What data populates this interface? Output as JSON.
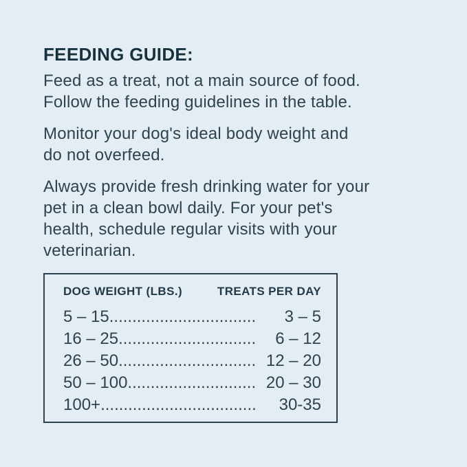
{
  "page": {
    "background_color": "#e3edf3",
    "body_text_color": "#2e434f",
    "heading_text_color": "#17313f",
    "table_border_color": "#2c414d"
  },
  "guide": {
    "heading": "FEEDING GUIDE:",
    "paragraphs": [
      {
        "lines": [
          "Feed as a treat, not a main source of food.",
          "Follow the feeding guidelines in the table."
        ]
      },
      {
        "lines": [
          "Monitor your dog's ideal body weight and",
          "do not overfeed."
        ]
      },
      {
        "lines": [
          "Always provide fresh drinking water for your",
          "pet in a clean bowl daily. For your pet's",
          "health, schedule regular visits with your",
          "veterinarian."
        ]
      }
    ]
  },
  "table": {
    "headers": {
      "weight": "DOG WEIGHT (LBS.)",
      "treats": "TREATS PER DAY"
    },
    "rows": [
      {
        "weight": "5 – 15",
        "treats": "3 – 5"
      },
      {
        "weight": "16 – 25",
        "treats": "6 – 12"
      },
      {
        "weight": "26 – 50",
        "treats": "12 – 20"
      },
      {
        "weight": "50 – 100",
        "treats": "20 – 30"
      },
      {
        "weight": "100+",
        "treats": "30-35"
      }
    ]
  }
}
